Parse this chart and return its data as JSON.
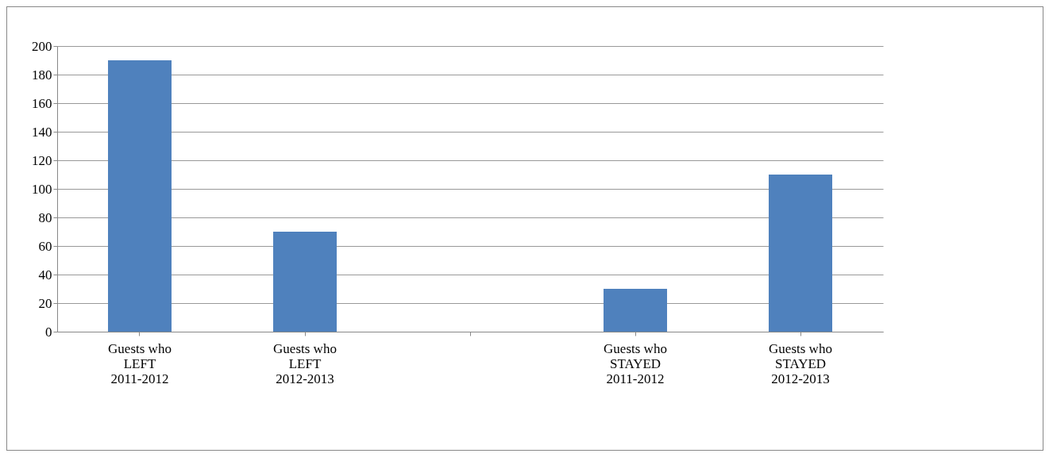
{
  "chart_data": {
    "type": "bar",
    "categories": [
      "Guests who\nLEFT\n2011-2012",
      "Guests who\nLEFT\n2012-2013",
      null,
      "Guests who\nSTAYED\n2011-2012",
      "Guests who\nSTAYED\n2012-2013"
    ],
    "values": [
      190,
      70,
      null,
      30,
      110
    ],
    "color": "#4f81bd",
    "ylim": [
      0,
      200
    ],
    "yticks": [
      0,
      20,
      40,
      60,
      80,
      100,
      120,
      140,
      160,
      180,
      200
    ],
    "grid": "y"
  }
}
